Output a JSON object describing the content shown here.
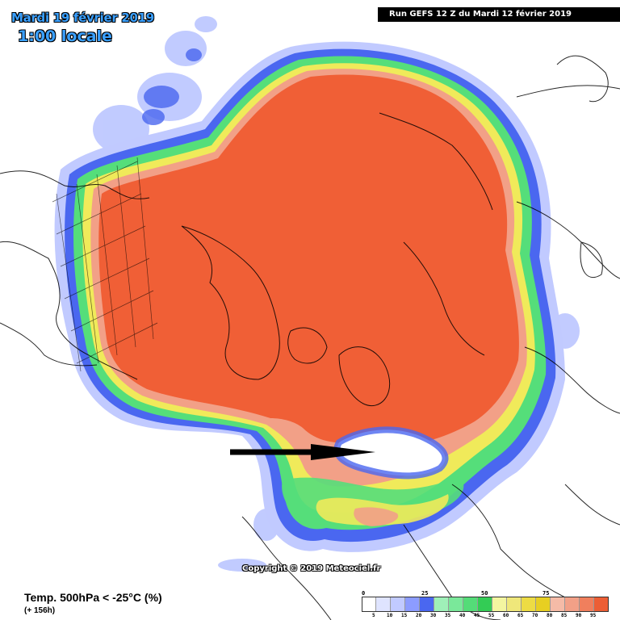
{
  "header": {
    "date": "Mardi 19 février 2019",
    "hour": "1:00 locale",
    "run": "Run GEFS 12 Z du Mardi 12 février 2019"
  },
  "footer": {
    "title": "Temp. 500hPa < -25°C (%)",
    "subtitle": "(+ 156h)",
    "copyright": "Copyright © 2019 Meteociel.fr"
  },
  "legend": {
    "top_labels": [
      "0",
      "25",
      "50",
      "75"
    ],
    "bottom_labels": [
      "5",
      "10",
      "15",
      "20",
      "30",
      "35",
      "40",
      "45",
      "55",
      "60",
      "65",
      "70",
      "80",
      "85",
      "90",
      "95"
    ],
    "colors": [
      "#ffffff",
      "#dfe4ff",
      "#c1caff",
      "#8c9cff",
      "#4a67f0",
      "#9ff0b8",
      "#7ae89a",
      "#54dc78",
      "#33cc55",
      "#f3f5a0",
      "#efe77a",
      "#eddc44",
      "#e7cf22",
      "#f5bba7",
      "#f2a087",
      "#f07f5d",
      "#ec5e35"
    ]
  },
  "colors": {
    "probability_high": "#f05f36",
    "probability_yellow": "#f0ea5a",
    "probability_green": "#55de7a",
    "probability_blue": "#4a67f0",
    "arrow": "#000000"
  }
}
